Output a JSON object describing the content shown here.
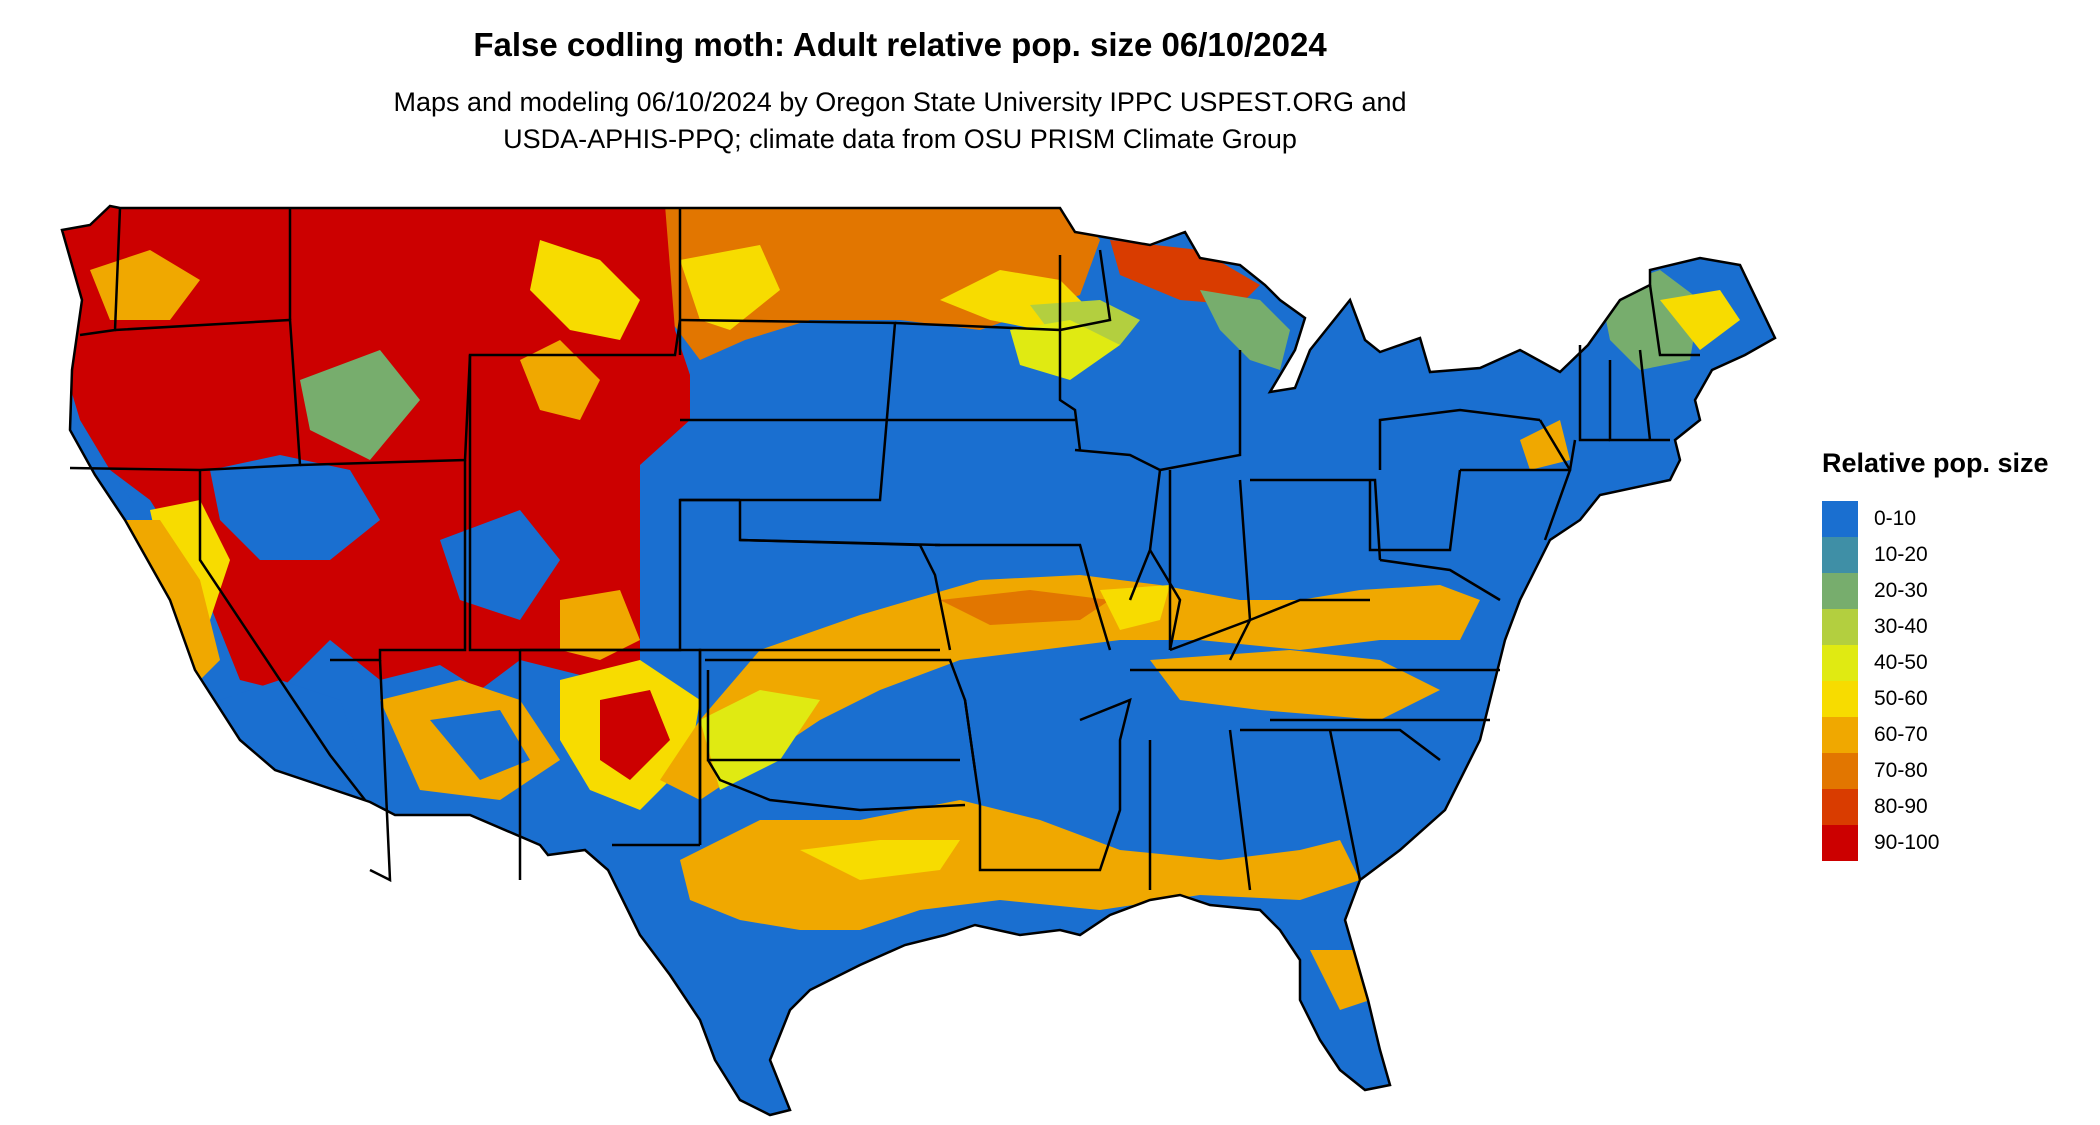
{
  "header": {
    "title": "False codling moth: Adult relative pop. size 06/10/2024",
    "subtitle_line1": "Maps and modeling 06/10/2024 by Oregon State University IPPC USPEST.ORG and",
    "subtitle_line2": "USDA-APHIS-PPQ; climate data from OSU PRISM Climate Group"
  },
  "legend": {
    "title": "Relative pop. size",
    "items": [
      {
        "label": "0-10",
        "color": "#1a6fd0"
      },
      {
        "label": "10-20",
        "color": "#3f8fa6"
      },
      {
        "label": "20-30",
        "color": "#77ad6d"
      },
      {
        "label": "30-40",
        "color": "#b3cf3f"
      },
      {
        "label": "40-50",
        "color": "#e0ea12"
      },
      {
        "label": "50-60",
        "color": "#f7dc00"
      },
      {
        "label": "60-70",
        "color": "#f0a800"
      },
      {
        "label": "70-80",
        "color": "#e27600"
      },
      {
        "label": "80-90",
        "color": "#d93c00"
      },
      {
        "label": "90-100",
        "color": "#cc0000"
      }
    ]
  }
}
